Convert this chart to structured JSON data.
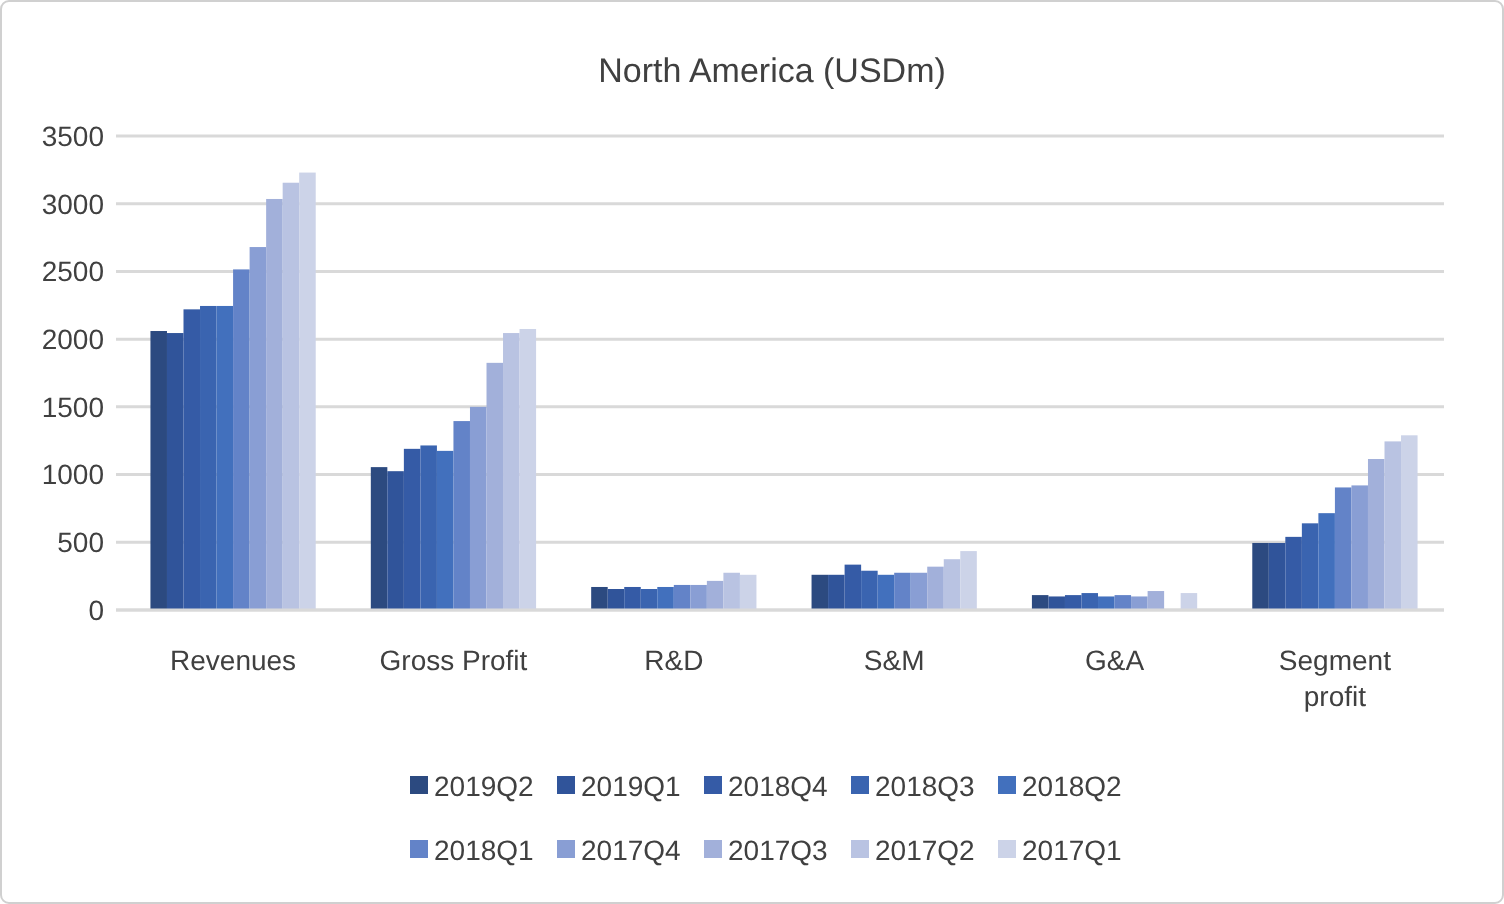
{
  "chart_data": {
    "type": "bar",
    "title": "North America (USDm)",
    "categories": [
      "Revenues",
      "Gross Profit",
      "R&D",
      "S&M",
      "G&A",
      "Segment profit"
    ],
    "series": [
      {
        "name": "2019Q2",
        "color": "#2c4a80",
        "values": [
          2060,
          1055,
          170,
          260,
          110,
          495
        ]
      },
      {
        "name": "2019Q1",
        "color": "#30549a",
        "values": [
          2045,
          1025,
          155,
          260,
          100,
          495
        ]
      },
      {
        "name": "2018Q4",
        "color": "#355ba6",
        "values": [
          2220,
          1190,
          170,
          335,
          110,
          540
        ]
      },
      {
        "name": "2018Q3",
        "color": "#3a64b0",
        "values": [
          2245,
          1215,
          155,
          290,
          125,
          640
        ]
      },
      {
        "name": "2018Q2",
        "color": "#4270bd",
        "values": [
          2245,
          1175,
          170,
          260,
          100,
          715
        ]
      },
      {
        "name": "2018Q1",
        "color": "#6383c8",
        "values": [
          2515,
          1395,
          185,
          275,
          110,
          905
        ]
      },
      {
        "name": "2017Q4",
        "color": "#899ed4",
        "values": [
          2680,
          1500,
          185,
          275,
          100,
          920
        ]
      },
      {
        "name": "2017Q3",
        "color": "#a2b0da",
        "values": [
          3035,
          1825,
          215,
          320,
          140,
          1115
        ]
      },
      {
        "name": "2017Q2",
        "color": "#b9c3e2",
        "values": [
          3155,
          2045,
          275,
          375,
          null,
          1245
        ]
      },
      {
        "name": "2017Q1",
        "color": "#ccd3e8",
        "values": [
          3230,
          2075,
          260,
          435,
          125,
          1290
        ]
      }
    ],
    "ylim": [
      0,
      3500
    ],
    "yticks": [
      0,
      500,
      1000,
      1500,
      2000,
      2500,
      3000,
      3500
    ],
    "grid": "y",
    "legend": "bottom"
  }
}
